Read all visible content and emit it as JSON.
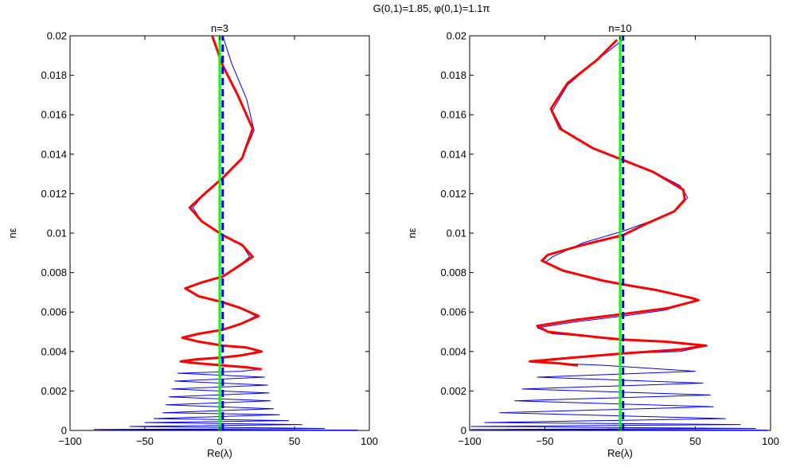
{
  "figure": {
    "suptitle": "G(0,1)=1.85, φ(0,1)=1.1π"
  },
  "colors": {
    "thin_line": "#0000ff",
    "thick_line": "#ff0000",
    "vertical_line": "#00ff00",
    "dashed_line": "#0000ff"
  },
  "chart_data": [
    {
      "type": "line",
      "title": "n=3",
      "xlabel": "Re(λ)",
      "ylabel": "nε",
      "xlim": [
        -100,
        100
      ],
      "ylim": [
        0,
        0.02
      ],
      "xticks": [
        -100,
        -50,
        0,
        50,
        100
      ],
      "xticklabels": [
        "−100",
        "−50",
        "0",
        "50",
        "100"
      ],
      "yticks": [
        0,
        0.002,
        0.004,
        0.006,
        0.008,
        0.01,
        0.012,
        0.014,
        0.016,
        0.018,
        0.02
      ],
      "yticklabels": [
        "0",
        "0.002",
        "0.004",
        "0.006",
        "0.008",
        "0.01",
        "0.012",
        "0.014",
        "0.016",
        "0.018",
        "0.02"
      ],
      "vertical_line_x": 0,
      "dashed_line_x": 2,
      "series": [
        {
          "style": "thin-blue",
          "points": [
            [
              2,
              0.02
            ],
            [
              8,
              0.0186
            ],
            [
              18,
              0.0168
            ],
            [
              23,
              0.0152
            ],
            [
              15,
              0.0138
            ],
            [
              2,
              0.0128
            ],
            [
              -10,
              0.012
            ],
            [
              -18,
              0.0113
            ],
            [
              -12,
              0.0106
            ],
            [
              2,
              0.0099
            ],
            [
              15,
              0.0094
            ],
            [
              20,
              0.0088
            ],
            [
              12,
              0.0083
            ],
            [
              2,
              0.0078
            ],
            [
              -12,
              0.0075
            ],
            [
              -22,
              0.0072
            ],
            [
              -14,
              0.0068
            ],
            [
              2,
              0.0065
            ],
            [
              14,
              0.0062
            ],
            [
              24,
              0.0058
            ],
            [
              14,
              0.0054
            ],
            [
              2,
              0.0051
            ],
            [
              -14,
              0.0049
            ],
            [
              -24,
              0.0047
            ],
            [
              -14,
              0.0045
            ],
            [
              2,
              0.0043
            ],
            [
              18,
              0.0042
            ],
            [
              28,
              0.004
            ],
            [
              14,
              0.0038
            ],
            [
              2,
              0.0037
            ],
            [
              -16,
              0.0036
            ],
            [
              -26,
              0.0035
            ],
            [
              -14,
              0.0034
            ],
            [
              2,
              0.0033
            ],
            [
              18,
              0.0032
            ],
            [
              28,
              0.0031
            ],
            [
              14,
              0.003
            ],
            [
              -28,
              0.0029
            ],
            [
              30,
              0.0027
            ],
            [
              -30,
              0.0025
            ],
            [
              32,
              0.0023
            ],
            [
              -32,
              0.0021
            ],
            [
              33,
              0.0019
            ],
            [
              -34,
              0.0017
            ],
            [
              34,
              0.0015
            ],
            [
              -36,
              0.0013
            ],
            [
              36,
              0.0011
            ],
            [
              -38,
              0.0009
            ],
            [
              40,
              0.0008
            ],
            [
              -44,
              0.0006
            ],
            [
              46,
              0.0005
            ],
            [
              -50,
              0.0004
            ],
            [
              55,
              0.0003
            ],
            [
              -60,
              0.0002
            ],
            [
              70,
              0.0001
            ],
            [
              -84,
              5e-05
            ],
            [
              92,
              2e-05
            ]
          ]
        },
        {
          "style": "thick-red",
          "points": [
            [
              -5,
              0.02
            ],
            [
              2,
              0.0185
            ],
            [
              12,
              0.017
            ],
            [
              22,
              0.0153
            ],
            [
              15,
              0.0138
            ],
            [
              2,
              0.0128
            ],
            [
              -10,
              0.012
            ],
            [
              -20,
              0.0113
            ],
            [
              -12,
              0.0106
            ],
            [
              2,
              0.0099
            ],
            [
              15,
              0.0094
            ],
            [
              22,
              0.0088
            ],
            [
              12,
              0.0083
            ],
            [
              2,
              0.0078
            ],
            [
              -12,
              0.0075
            ],
            [
              -23,
              0.0072
            ],
            [
              -14,
              0.0068
            ],
            [
              2,
              0.0065
            ],
            [
              14,
              0.0062
            ],
            [
              26,
              0.0058
            ],
            [
              14,
              0.0054
            ],
            [
              2,
              0.0051
            ],
            [
              -14,
              0.0049
            ],
            [
              -25,
              0.0047
            ],
            [
              -14,
              0.0045
            ],
            [
              2,
              0.0043
            ],
            [
              18,
              0.0042
            ],
            [
              28,
              0.004
            ],
            [
              14,
              0.0038
            ],
            [
              2,
              0.0037
            ],
            [
              -16,
              0.0036
            ],
            [
              -26,
              0.0035
            ],
            [
              -14,
              0.0034
            ],
            [
              2,
              0.0033
            ],
            [
              18,
              0.0032
            ],
            [
              28,
              0.0031
            ]
          ]
        }
      ]
    },
    {
      "type": "line",
      "title": "n=10",
      "xlabel": "Re(λ)",
      "ylabel": "nε",
      "xlim": [
        -100,
        100
      ],
      "ylim": [
        0,
        0.02
      ],
      "xticks": [
        -100,
        -50,
        0,
        50,
        100
      ],
      "xticklabels": [
        "−100",
        "−50",
        "0",
        "50",
        "100"
      ],
      "yticks": [
        0,
        0.002,
        0.004,
        0.006,
        0.008,
        0.01,
        0.012,
        0.014,
        0.016,
        0.018,
        0.02
      ],
      "yticklabels": [
        "0",
        "0.002",
        "0.004",
        "0.006",
        "0.008",
        "0.01",
        "0.012",
        "0.014",
        "0.016",
        "0.018",
        "0.02"
      ],
      "vertical_line_x": 0,
      "dashed_line_x": 2,
      "series": [
        {
          "style": "thin-blue",
          "points": [
            [
              2,
              0.0198
            ],
            [
              -15,
              0.0188
            ],
            [
              -35,
              0.0175
            ],
            [
              -45,
              0.0162
            ],
            [
              -38,
              0.0152
            ],
            [
              -15,
              0.0142
            ],
            [
              2,
              0.0137
            ],
            [
              20,
              0.0132
            ],
            [
              40,
              0.0124
            ],
            [
              45,
              0.0118
            ],
            [
              38,
              0.0112
            ],
            [
              20,
              0.0106
            ],
            [
              2,
              0.0101
            ],
            [
              -25,
              0.0095
            ],
            [
              -45,
              0.0088
            ],
            [
              -50,
              0.0085
            ],
            [
              -35,
              0.008
            ],
            [
              -10,
              0.0076
            ],
            [
              2,
              0.0074
            ],
            [
              25,
              0.0071
            ],
            [
              50,
              0.0067
            ],
            [
              52,
              0.0066
            ],
            [
              30,
              0.0061
            ],
            [
              2,
              0.0058
            ],
            [
              -30,
              0.0055
            ],
            [
              -55,
              0.0052
            ],
            [
              -45,
              0.0049
            ],
            [
              -10,
              0.0047
            ],
            [
              2,
              0.0046
            ],
            [
              30,
              0.0045
            ],
            [
              58,
              0.0043
            ],
            [
              40,
              0.004
            ],
            [
              2,
              0.0039
            ],
            [
              -30,
              0.0037
            ],
            [
              -60,
              0.0035
            ],
            [
              -40,
              0.0034
            ],
            [
              -10,
              0.0033
            ],
            [
              50,
              0.003
            ],
            [
              -55,
              0.0027
            ],
            [
              55,
              0.0024
            ],
            [
              -65,
              0.0021
            ],
            [
              60,
              0.0018
            ],
            [
              -70,
              0.0015
            ],
            [
              62,
              0.0012
            ],
            [
              -80,
              0.0009
            ],
            [
              70,
              0.0006
            ],
            [
              -90,
              0.0004
            ],
            [
              80,
              0.0003
            ],
            [
              -99,
              0.0002
            ],
            [
              90,
              0.0001
            ],
            [
              -99,
              5e-05
            ],
            [
              98,
              2e-05
            ]
          ]
        },
        {
          "style": "thick-red",
          "points": [
            [
              -2,
              0.0198
            ],
            [
              -15,
              0.0188
            ],
            [
              -35,
              0.0176
            ],
            [
              -46,
              0.0163
            ],
            [
              -40,
              0.0153
            ],
            [
              -18,
              0.0143
            ],
            [
              2,
              0.0137
            ],
            [
              22,
              0.0131
            ],
            [
              42,
              0.0122
            ],
            [
              43,
              0.0117
            ],
            [
              36,
              0.0111
            ],
            [
              18,
              0.0105
            ],
            [
              2,
              0.0099
            ],
            [
              -25,
              0.0094
            ],
            [
              -48,
              0.0089
            ],
            [
              -52,
              0.0086
            ],
            [
              -38,
              0.0081
            ],
            [
              -12,
              0.0076
            ],
            [
              2,
              0.0074
            ],
            [
              25,
              0.0071
            ],
            [
              48,
              0.0067
            ],
            [
              52,
              0.0066
            ],
            [
              32,
              0.0062
            ],
            [
              2,
              0.0059
            ],
            [
              -30,
              0.0056
            ],
            [
              -55,
              0.0053
            ],
            [
              -48,
              0.005
            ],
            [
              -12,
              0.0047
            ],
            [
              2,
              0.0046
            ],
            [
              30,
              0.0045
            ],
            [
              57,
              0.0043
            ],
            [
              40,
              0.0041
            ],
            [
              2,
              0.0039
            ],
            [
              -30,
              0.0037
            ],
            [
              -60,
              0.0035
            ],
            [
              -40,
              0.0034
            ],
            [
              -28,
              0.0033
            ]
          ]
        }
      ]
    }
  ]
}
